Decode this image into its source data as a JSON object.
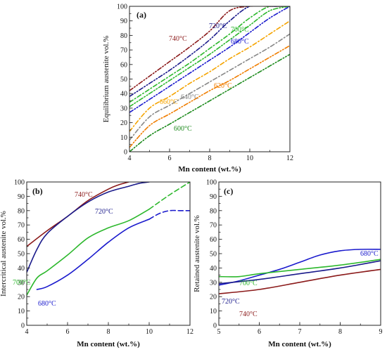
{
  "chart_data": [
    {
      "panel_label": "(a)",
      "type": "line",
      "xlabel": "Mn content (wt.%)",
      "ylabel": "Equilibrium austenite vol.%",
      "xlim": [
        4,
        12
      ],
      "ylim": [
        0,
        100
      ],
      "xticks": [
        4,
        6,
        8,
        10,
        12
      ],
      "yticks": [
        0,
        10,
        20,
        30,
        40,
        50,
        60,
        70,
        80,
        90,
        100
      ],
      "grid": false,
      "series": [
        {
          "name": "740°C",
          "color": "#8b1a1a",
          "dash": "dashdotdot",
          "x": [
            4,
            5,
            6,
            7,
            8,
            9,
            10,
            11,
            12
          ],
          "y": [
            42,
            52,
            62,
            72,
            83,
            97,
            100,
            100,
            100
          ]
        },
        {
          "name": "720°C",
          "color": "#1a1a8b",
          "dash": "dashdotdot",
          "x": [
            4,
            5,
            6,
            7,
            8,
            9,
            10,
            11,
            12
          ],
          "y": [
            38,
            47,
            56,
            66,
            77,
            90,
            100,
            100,
            100
          ]
        },
        {
          "name": "",
          "color": "#2db82d",
          "dash": "dashdot",
          "x": [
            4,
            5,
            6,
            7,
            8,
            9,
            10,
            11,
            12
          ],
          "y": [
            34,
            43,
            52,
            61,
            71,
            81,
            92,
            100,
            100
          ]
        },
        {
          "name": "700°C",
          "color": "#2db82d",
          "dash": "dashdotdot",
          "x": [
            4,
            5,
            6,
            7,
            8,
            9,
            10,
            11,
            12
          ],
          "y": [
            31,
            40,
            49,
            58,
            67,
            77,
            87,
            97,
            100
          ]
        },
        {
          "name": "680°C",
          "color": "#1a1acd",
          "dash": "dashdotdot",
          "x": [
            4,
            5,
            6,
            7,
            8,
            9,
            10,
            11,
            12
          ],
          "y": [
            27,
            36,
            45,
            54,
            63,
            72,
            82,
            92,
            100
          ]
        },
        {
          "name": "660°C",
          "color": "#f5a400",
          "dash": "dashdot",
          "x": [
            4,
            5,
            6,
            7,
            8,
            9,
            10,
            11,
            12
          ],
          "y": [
            14,
            30,
            38,
            47,
            55,
            64,
            72,
            81,
            90
          ]
        },
        {
          "name": "640°C",
          "color": "#888888",
          "dash": "dashdot",
          "x": [
            4,
            5,
            6,
            7,
            8,
            9,
            10,
            11,
            12
          ],
          "y": [
            8,
            24,
            32,
            40,
            48,
            56,
            64,
            72,
            81
          ]
        },
        {
          "name": "620°C",
          "color": "#f07d00",
          "dash": "dashdotdot",
          "x": [
            4,
            5,
            6,
            7,
            8,
            9,
            10,
            11,
            12
          ],
          "y": [
            3,
            18,
            26,
            34,
            42,
            49,
            57,
            65,
            73
          ]
        },
        {
          "name": "600°C",
          "color": "#1e8b1e",
          "dash": "dashdotdot",
          "x": [
            4,
            5,
            6,
            7,
            8,
            9,
            10,
            11,
            12
          ],
          "y": [
            0,
            11,
            19,
            27,
            35,
            43,
            51,
            59,
            67
          ]
        }
      ]
    },
    {
      "panel_label": "(b)",
      "type": "line",
      "xlabel": "Mn content (wt.%)",
      "ylabel": "Intercritical austenite vol.%",
      "xlim": [
        4,
        12
      ],
      "ylim": [
        0,
        100
      ],
      "xticks": [
        4,
        6,
        8,
        10,
        12
      ],
      "yticks": [
        0,
        10,
        20,
        30,
        40,
        50,
        60,
        70,
        80,
        90,
        100
      ],
      "grid": false,
      "series": [
        {
          "name": "740°C",
          "color": "#8b1a1a",
          "x": [
            4,
            5,
            6,
            7,
            8,
            8.5,
            9
          ],
          "y": [
            55,
            66,
            76,
            87,
            95,
            98,
            100
          ]
        },
        {
          "name": "720°C",
          "color": "#1a1a8b",
          "x": [
            4,
            4.5,
            5,
            6,
            7,
            8,
            9,
            9.5,
            10
          ],
          "y": [
            37,
            53,
            64,
            76,
            86,
            93,
            97,
            99,
            100
          ]
        },
        {
          "name": "700°C",
          "color": "#2db82d",
          "x": [
            4,
            4.5,
            5,
            6,
            7,
            8,
            9,
            10
          ],
          "y": [
            21,
            33,
            38,
            49,
            61,
            68,
            73,
            81
          ]
        },
        {
          "name": "",
          "color": "#2db82d",
          "dashed": true,
          "x": [
            10,
            11,
            12
          ],
          "y": [
            81,
            91,
            100
          ]
        },
        {
          "name": "680°C",
          "color": "#1a1acd",
          "x": [
            4.5,
            5,
            6,
            7,
            8,
            9,
            10
          ],
          "y": [
            25,
            27,
            35,
            46,
            58,
            68,
            74
          ]
        },
        {
          "name": "",
          "color": "#1a1acd",
          "dashed": true,
          "x": [
            10,
            10.5,
            11,
            11.5,
            12
          ],
          "y": [
            74,
            78,
            80,
            80,
            80
          ]
        }
      ]
    },
    {
      "panel_label": "(c)",
      "type": "line",
      "xlabel": "Mn content (wt.%)",
      "ylabel": "Retained austenite vol.%",
      "xlim": [
        5,
        9
      ],
      "ylim": [
        0,
        100
      ],
      "xticks": [
        5,
        6,
        7,
        8,
        9
      ],
      "yticks": [
        0,
        10,
        20,
        30,
        40,
        50,
        60,
        70,
        80,
        90,
        100
      ],
      "grid": false,
      "series": [
        {
          "name": "680°C",
          "color": "#1a1acd",
          "x": [
            5,
            5.5,
            6,
            6.5,
            7,
            7.5,
            8,
            8.5,
            9
          ],
          "y": [
            28,
            31,
            35,
            39,
            44,
            49,
            52,
            53,
            53
          ]
        },
        {
          "name": "700°C",
          "color": "#2db82d",
          "x": [
            5,
            5.5,
            6,
            7,
            8,
            9
          ],
          "y": [
            34,
            34,
            36,
            39,
            42,
            46
          ]
        },
        {
          "name": "720°C",
          "color": "#1a1a8b",
          "x": [
            5,
            6,
            7,
            8,
            9
          ],
          "y": [
            29,
            32,
            36,
            40,
            45
          ]
        },
        {
          "name": "740°C",
          "color": "#8b1a1a",
          "x": [
            5,
            6,
            7,
            8,
            9
          ],
          "y": [
            22,
            25,
            30,
            35,
            39
          ]
        }
      ]
    }
  ]
}
